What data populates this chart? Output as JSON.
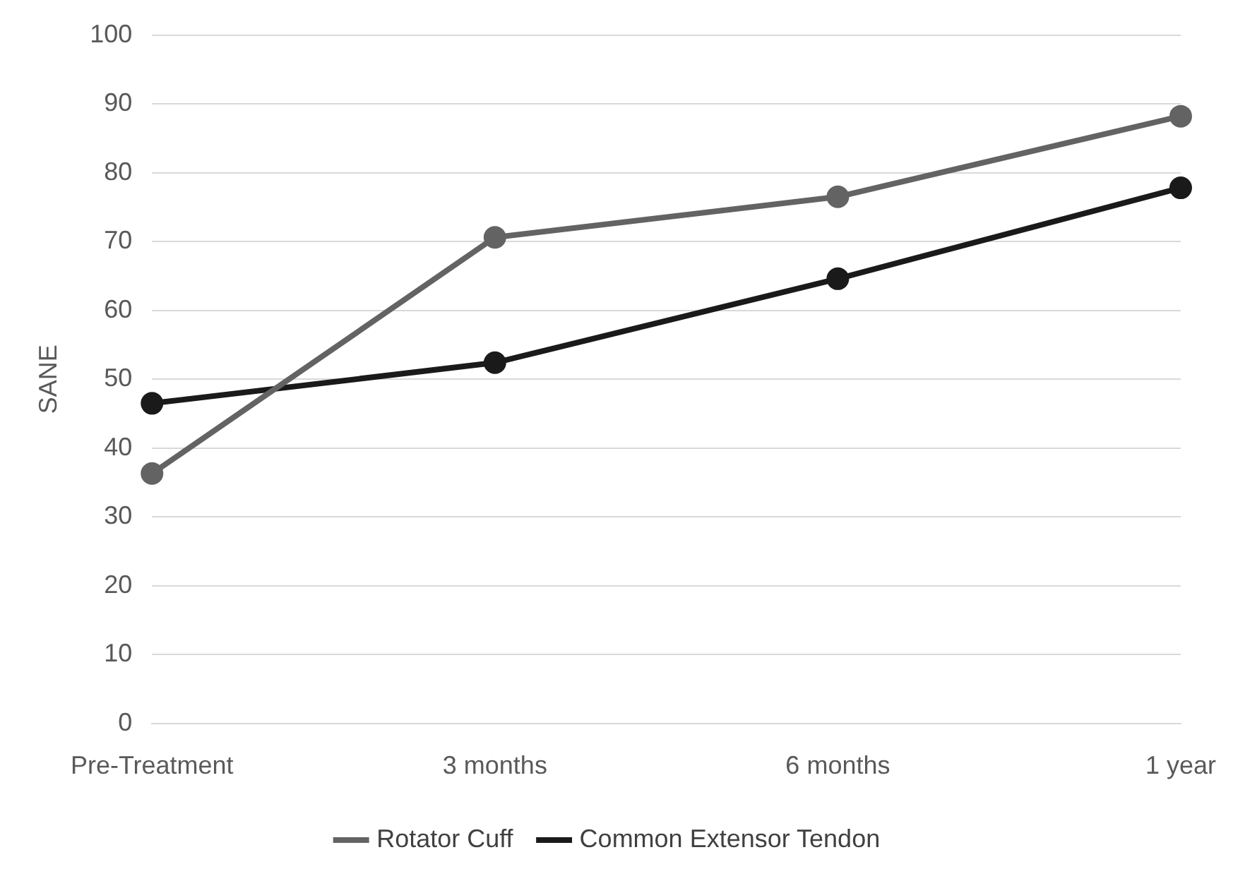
{
  "chart_data": {
    "type": "line",
    "ylabel": "SANE",
    "categories": [
      "Pre-Treatment",
      "3 months",
      "6 months",
      "1 year"
    ],
    "series": [
      {
        "name": "Rotator Cuff",
        "color": "#636363",
        "values": [
          36.3,
          70.6,
          76.5,
          88.2
        ]
      },
      {
        "name": "Common Extensor Tendon",
        "color": "#1a1a1a",
        "values": [
          46.5,
          52.4,
          64.6,
          77.8
        ]
      }
    ],
    "ylim": [
      0,
      100
    ],
    "yticks": [
      0,
      10,
      20,
      30,
      40,
      50,
      60,
      70,
      80,
      90,
      100
    ],
    "grid": "y",
    "legend": "bottom",
    "marker": "circle",
    "line_style": "solid"
  }
}
